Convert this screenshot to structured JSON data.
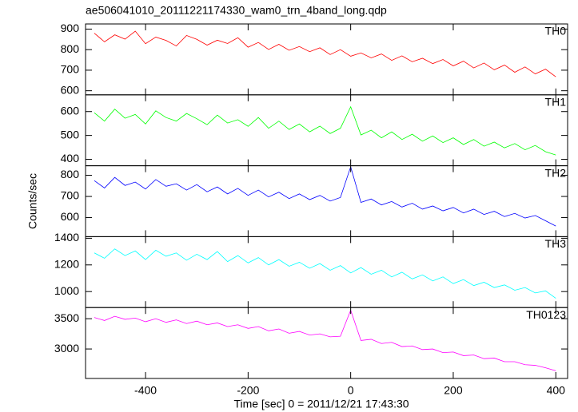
{
  "chart_data": [
    {
      "type": "line",
      "title": "ae506041010_20111221174330_wam0_trn_4band_long.qdp",
      "label": "TH0",
      "color": "#ff0000",
      "x": [
        -500,
        -480,
        -460,
        -440,
        -420,
        -400,
        -380,
        -360,
        -340,
        -320,
        -300,
        -280,
        -260,
        -240,
        -220,
        -200,
        -180,
        -160,
        -140,
        -120,
        -100,
        -80,
        -60,
        -40,
        -20,
        0,
        20,
        40,
        60,
        80,
        100,
        120,
        140,
        160,
        180,
        200,
        220,
        240,
        260,
        280,
        300,
        320,
        340,
        360,
        380,
        400
      ],
      "values": [
        880,
        838,
        872,
        851,
        890,
        829,
        861,
        845,
        818,
        869,
        850,
        822,
        846,
        830,
        858,
        812,
        835,
        801,
        826,
        797,
        815,
        790,
        809,
        776,
        800,
        768,
        784,
        760,
        779,
        748,
        770,
        741,
        758,
        732,
        752,
        721,
        744,
        711,
        735,
        702,
        725,
        690,
        716,
        682,
        705,
        668
      ],
      "xlim": [
        -517,
        423
      ],
      "xticks": [
        -400,
        -200,
        0,
        200,
        400
      ],
      "ylim": [
        580,
        925
      ],
      "yticks": [
        600,
        700,
        800,
        900
      ]
    },
    {
      "type": "line",
      "label": "TH1",
      "color": "#00ff00",
      "x": [
        -500,
        -480,
        -460,
        -440,
        -420,
        -400,
        -380,
        -360,
        -340,
        -320,
        -300,
        -280,
        -260,
        -240,
        -220,
        -200,
        -180,
        -160,
        -140,
        -120,
        -100,
        -80,
        -60,
        -40,
        -20,
        0,
        20,
        40,
        60,
        80,
        100,
        120,
        140,
        160,
        180,
        200,
        220,
        240,
        260,
        280,
        300,
        320,
        340,
        360,
        380,
        400
      ],
      "values": [
        595,
        560,
        610,
        572,
        588,
        548,
        603,
        575,
        560,
        592,
        570,
        545,
        585,
        552,
        566,
        538,
        575,
        530,
        560,
        525,
        548,
        515,
        539,
        508,
        530,
        620,
        502,
        522,
        490,
        515,
        483,
        505,
        476,
        498,
        470,
        490,
        462,
        483,
        455,
        472,
        448,
        466,
        440,
        458,
        432,
        418
      ],
      "xlim": [
        -517,
        423
      ],
      "xticks": [
        -400,
        -200,
        0,
        200,
        400
      ],
      "ylim": [
        373,
        670
      ],
      "yticks": [
        400,
        500,
        600
      ]
    },
    {
      "type": "line",
      "label": "TH2",
      "color": "#0000ff",
      "ylabel": "Counts/sec",
      "x": [
        -500,
        -480,
        -460,
        -440,
        -420,
        -400,
        -380,
        -360,
        -340,
        -320,
        -300,
        -280,
        -260,
        -240,
        -220,
        -200,
        -180,
        -160,
        -140,
        -120,
        -100,
        -80,
        -60,
        -40,
        -20,
        0,
        20,
        40,
        60,
        80,
        100,
        120,
        140,
        160,
        180,
        200,
        220,
        240,
        260,
        280,
        300,
        320,
        340,
        360,
        380,
        400
      ],
      "values": [
        775,
        740,
        790,
        752,
        768,
        735,
        780,
        748,
        760,
        730,
        756,
        722,
        745,
        712,
        738,
        705,
        730,
        698,
        720,
        690,
        712,
        685,
        705,
        678,
        695,
        840,
        672,
        688,
        660,
        676,
        650,
        668,
        640,
        655,
        632,
        648,
        622,
        640,
        615,
        630,
        605,
        620,
        598,
        610,
        585,
        560
      ],
      "xlim": [
        -517,
        423
      ],
      "xticks": [
        -400,
        -200,
        0,
        200,
        400
      ],
      "ylim": [
        510,
        845
      ],
      "yticks": [
        600,
        700,
        800
      ]
    },
    {
      "type": "line",
      "label": "TH3",
      "color": "#00ffff",
      "x": [
        -500,
        -480,
        -460,
        -440,
        -420,
        -400,
        -380,
        -360,
        -340,
        -320,
        -300,
        -280,
        -260,
        -240,
        -220,
        -200,
        -180,
        -160,
        -140,
        -120,
        -100,
        -80,
        -60,
        -40,
        -20,
        0,
        20,
        40,
        60,
        80,
        100,
        120,
        140,
        160,
        180,
        200,
        220,
        240,
        260,
        280,
        300,
        320,
        340,
        360,
        380,
        400
      ],
      "values": [
        1290,
        1250,
        1320,
        1270,
        1305,
        1240,
        1310,
        1265,
        1290,
        1235,
        1280,
        1240,
        1300,
        1225,
        1270,
        1215,
        1255,
        1200,
        1240,
        1190,
        1220,
        1175,
        1210,
        1160,
        1195,
        1140,
        1180,
        1130,
        1160,
        1110,
        1145,
        1095,
        1125,
        1080,
        1110,
        1060,
        1090,
        1045,
        1070,
        1030,
        1050,
        1010,
        1030,
        990,
        1005,
        950
      ],
      "xlim": [
        -517,
        423
      ],
      "xticks": [
        -400,
        -200,
        0,
        200,
        400
      ],
      "ylim": [
        880,
        1412
      ],
      "yticks": [
        1000,
        1200,
        1400
      ]
    },
    {
      "type": "line",
      "label": "TH0123",
      "color": "#ff00ff",
      "xlabel": "Time [sec] 0 = 2011/12/21 17:43:30",
      "x": [
        -500,
        -480,
        -460,
        -440,
        -420,
        -400,
        -380,
        -360,
        -340,
        -320,
        -300,
        -280,
        -260,
        -240,
        -220,
        -200,
        -180,
        -160,
        -140,
        -120,
        -100,
        -80,
        -60,
        -40,
        -20,
        0,
        20,
        40,
        60,
        80,
        100,
        120,
        140,
        160,
        180,
        200,
        220,
        240,
        260,
        280,
        300,
        320,
        340,
        360,
        380,
        400
      ],
      "values": [
        3520,
        3470,
        3540,
        3490,
        3510,
        3450,
        3500,
        3440,
        3480,
        3420,
        3460,
        3400,
        3430,
        3370,
        3400,
        3340,
        3370,
        3300,
        3330,
        3260,
        3290,
        3230,
        3250,
        3200,
        3210,
        3640,
        3140,
        3160,
        3090,
        3110,
        3040,
        3050,
        2990,
        3000,
        2940,
        2950,
        2890,
        2900,
        2840,
        2850,
        2790,
        2790,
        2740,
        2730,
        2690,
        2640
      ],
      "xlim": [
        -517,
        423
      ],
      "xticks": [
        -400,
        -200,
        0,
        200,
        400
      ],
      "ylim": [
        2513,
        3684
      ],
      "yticks": [
        3000,
        3500
      ]
    }
  ]
}
